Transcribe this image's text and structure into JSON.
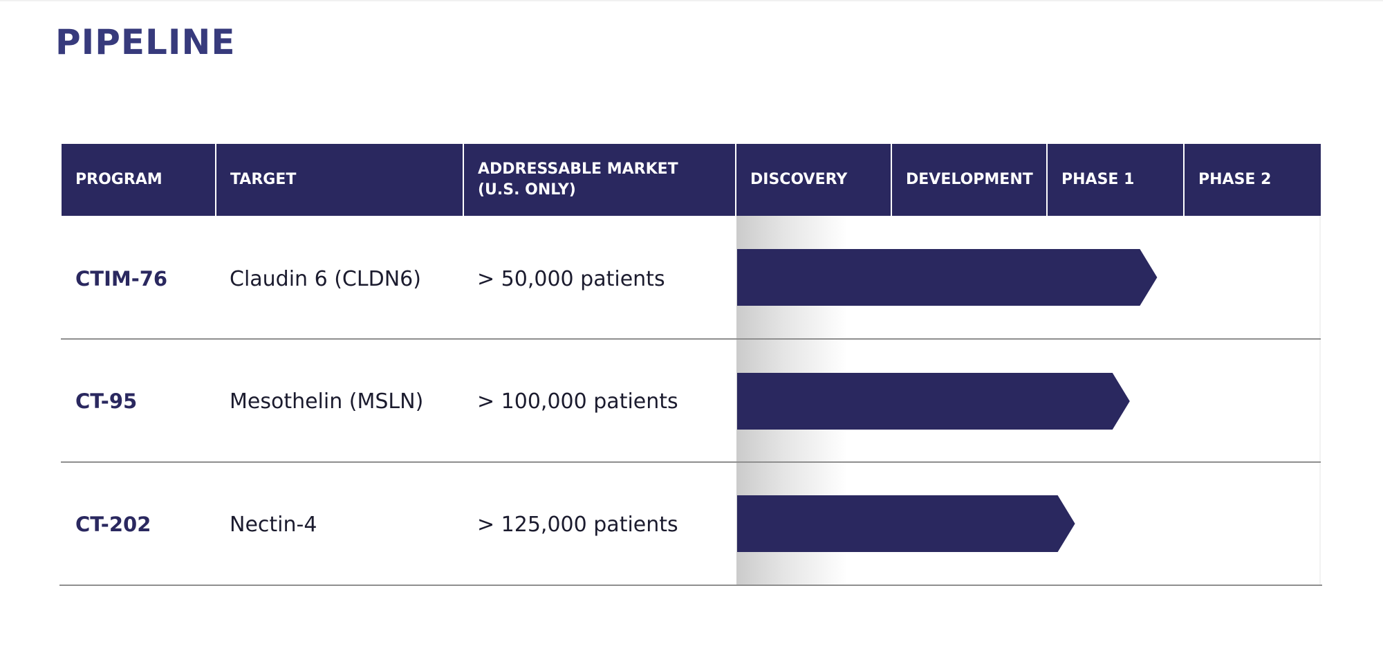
{
  "page": {
    "title": "PIPELINE"
  },
  "colors": {
    "brand_navy": "#2a285f",
    "title_blue": "#373a7c",
    "divider_gray": "#8e8e8e"
  },
  "table": {
    "columns": [
      "PROGRAM",
      "TARGET",
      "ADDRESSABLE MARKET\n(U.S. ONLY)",
      "DISCOVERY",
      "DEVELOPMENT",
      "PHASE 1",
      "PHASE 2"
    ],
    "rows": [
      {
        "program": "CTIM-76",
        "target": "Claudin 6 (CLDN6)",
        "market": "> 50,000 patients"
      },
      {
        "program": "CT-95",
        "target": "Mesothelin (MSLN)",
        "market": "> 100,000 patients"
      },
      {
        "program": "CT-202",
        "target": "Nectin-4",
        "market": "> 125,000 patients"
      }
    ]
  },
  "chart_data": {
    "type": "bar",
    "orientation": "horizontal",
    "stages": [
      "DISCOVERY",
      "DEVELOPMENT",
      "PHASE 1",
      "PHASE 2"
    ],
    "categories": [
      "CTIM-76",
      "CT-95",
      "CT-202"
    ],
    "values": [
      2.8,
      2.6,
      2.2
    ],
    "xlim": [
      0,
      4
    ],
    "grid": false,
    "title": ""
  }
}
